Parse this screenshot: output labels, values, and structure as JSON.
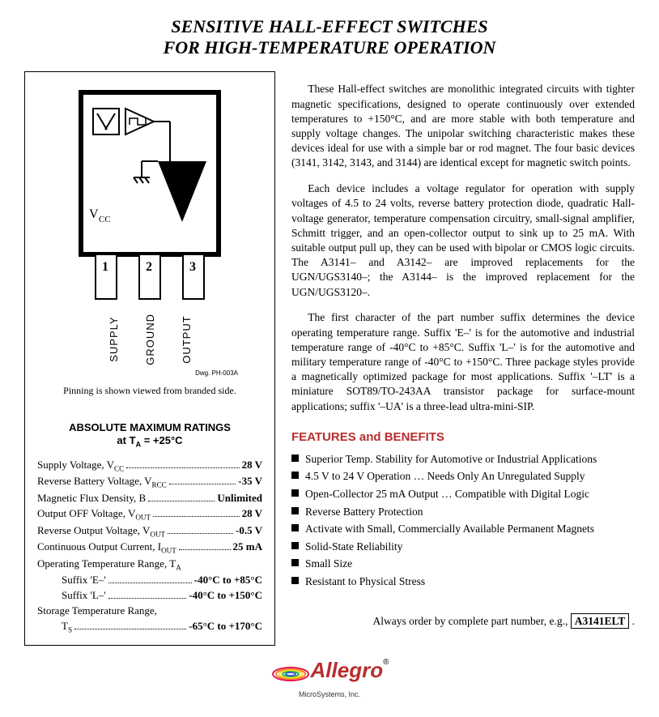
{
  "title_line1": "SENSITIVE HALL-EFFECT SWITCHES",
  "title_line2": "FOR HIGH-TEMPERATURE OPERATION",
  "diagram": {
    "vcc_label": "V",
    "vcc_sub": "CC",
    "pin_numbers": [
      "1",
      "2",
      "3"
    ],
    "pin_labels": [
      "SUPPLY",
      "GROUND",
      "OUTPUT"
    ],
    "dwg_note": "Dwg. PH-003A",
    "pinning_note": "Pinning is shown viewed from branded side.",
    "stroke_color": "#000000",
    "bg_color": "#ffffff"
  },
  "ratings": {
    "heading_line1": "ABSOLUTE MAXIMUM RATINGS",
    "heading_line2": "at T",
    "heading_sub": "A",
    "heading_line2b": " = +25°C",
    "rows": [
      {
        "label": "Supply Voltage, V",
        "sub": "CC",
        "value": "28 V",
        "indent": false,
        "has_value": true
      },
      {
        "label": "Reverse Battery Voltage, V",
        "sub": "RCC",
        "value": "-35 V",
        "indent": false,
        "has_value": true
      },
      {
        "label": "Magnetic Flux Density, B",
        "sub": "",
        "value": "Unlimited",
        "indent": false,
        "has_value": true
      },
      {
        "label": "Output OFF Voltage, V",
        "sub": "OUT",
        "value": "28 V",
        "indent": false,
        "has_value": true
      },
      {
        "label": "Reverse Output Voltage, V",
        "sub": "OUT",
        "value": "-0.5 V",
        "indent": false,
        "has_value": true
      },
      {
        "label": "Continuous Output Current, I",
        "sub": "OUT",
        "value": "25 mA",
        "indent": false,
        "has_value": true
      },
      {
        "label": "Operating Temperature Range, T",
        "sub": "A",
        "value": "",
        "indent": false,
        "has_value": false
      },
      {
        "label": "Suffix 'E–'",
        "sub": "",
        "value": "-40°C to +85°C",
        "indent": true,
        "has_value": true
      },
      {
        "label": "Suffix 'L–'",
        "sub": "",
        "value": "-40°C to +150°C",
        "indent": true,
        "has_value": true
      },
      {
        "label": "Storage Temperature Range,",
        "sub": "",
        "value": "",
        "indent": false,
        "has_value": false
      },
      {
        "label": "T",
        "sub": "S",
        "value": "-65°C to +170°C",
        "indent": true,
        "has_value": true
      }
    ]
  },
  "paragraphs": [
    "These Hall-effect switches are monolithic integrated circuits with tighter magnetic specifications, designed to operate continuously over extended temperatures to +150°C, and are more stable with both temperature and supply voltage changes.  The unipolar switching characteristic makes these devices ideal for use with a simple bar or rod magnet.  The four basic devices (3141, 3142, 3143, and 3144) are identical except for magnetic switch points.",
    "Each device includes a voltage regulator for operation with supply voltages of 4.5 to 24 volts, reverse battery protection diode, quadratic Hall-voltage generator, temperature compensation circuitry, small-signal amplifier, Schmitt trigger, and an open-collector output to sink up to 25 mA.  With suitable output pull up, they can be used with bipolar or CMOS logic circuits.  The A3141– and A3142– are improved replacements for the UGN/UGS3140–; the A3144– is the improved replacement for the UGN/UGS3120–.",
    "The first character of the part number suffix determines the device operating temperature range.  Suffix 'E–' is for the automotive and industrial temperature range of -40°C to +85°C.  Suffix 'L–' is for the automotive and military temperature range of -40°C to +150°C.  Three package styles provide a magnetically optimized package for most applications.  Suffix '–LT' is a  miniature SOT89/TO-243AA transistor package for surface-mount applications; suffix '–UA' is a three-lead ultra-mini-SIP."
  ],
  "features_heading": "FEATURES and BENEFITS",
  "features": [
    "Superior Temp. Stability for Automotive or Industrial Applications",
    "4.5 V to 24 V Operation … Needs Only An Unregulated Supply",
    "Open-Collector 25 mA Output … Compatible with Digital Logic",
    "Reverse Battery Protection",
    "Activate with Small, Commercially Available Permanent Magnets",
    "Solid-State Reliability",
    "Small Size",
    "Resistant to Physical Stress"
  ],
  "order_note_prefix": "Always order by complete part number, e.g., ",
  "order_part": "A3141ELT",
  "order_note_suffix": " .",
  "logo": {
    "text": "Allegro",
    "subtext": "MicroSystems, Inc.",
    "color": "#b82e2e"
  },
  "colors": {
    "heading_red": "#b82e2e",
    "text": "#000000",
    "bg": "#ffffff"
  }
}
